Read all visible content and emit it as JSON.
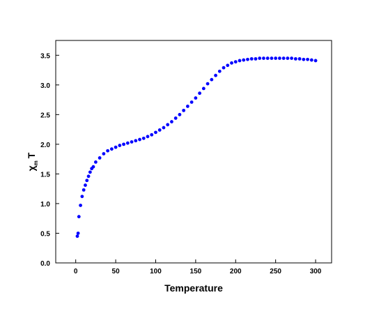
{
  "chart_data": {
    "type": "scatter",
    "title": "",
    "xlabel": "Temperature",
    "ylabel_main": "χ",
    "ylabel_sub": "m",
    "ylabel_tail": "T",
    "xlim": [
      -25,
      320
    ],
    "ylim": [
      0,
      3.75
    ],
    "xticks": [
      0,
      50,
      100,
      150,
      200,
      250,
      300
    ],
    "yticks": [
      0.0,
      0.5,
      1.0,
      1.5,
      2.0,
      2.5,
      3.0,
      3.5
    ],
    "ytick_labels": [
      "0.0",
      "0.5",
      "1.0",
      "1.5",
      "2.0",
      "2.5",
      "3.0",
      "3.5"
    ],
    "grid": false,
    "marker_color": "#0000ff",
    "series": [
      {
        "x": [
          2,
          3,
          4,
          6,
          8,
          10,
          12,
          14,
          16,
          18,
          20,
          22,
          25,
          30,
          35,
          40,
          45,
          50,
          55,
          60,
          65,
          70,
          75,
          80,
          85,
          90,
          95,
          100,
          105,
          110,
          115,
          120,
          125,
          130,
          135,
          140,
          145,
          150,
          155,
          160,
          165,
          170,
          175,
          180,
          185,
          190,
          195,
          200,
          205,
          210,
          215,
          220,
          225,
          230,
          235,
          240,
          245,
          250,
          255,
          260,
          265,
          270,
          275,
          280,
          285,
          290,
          295,
          300
        ],
        "y": [
          0.45,
          0.5,
          0.78,
          0.97,
          1.12,
          1.23,
          1.31,
          1.39,
          1.46,
          1.53,
          1.59,
          1.62,
          1.7,
          1.77,
          1.84,
          1.89,
          1.92,
          1.95,
          1.98,
          2.0,
          2.02,
          2.04,
          2.06,
          2.08,
          2.1,
          2.13,
          2.16,
          2.2,
          2.24,
          2.28,
          2.33,
          2.38,
          2.44,
          2.5,
          2.57,
          2.64,
          2.71,
          2.78,
          2.86,
          2.94,
          3.02,
          3.09,
          3.16,
          3.23,
          3.29,
          3.33,
          3.37,
          3.39,
          3.41,
          3.42,
          3.43,
          3.44,
          3.44,
          3.45,
          3.45,
          3.45,
          3.45,
          3.45,
          3.45,
          3.45,
          3.45,
          3.45,
          3.44,
          3.44,
          3.43,
          3.43,
          3.42,
          3.41
        ]
      }
    ]
  }
}
